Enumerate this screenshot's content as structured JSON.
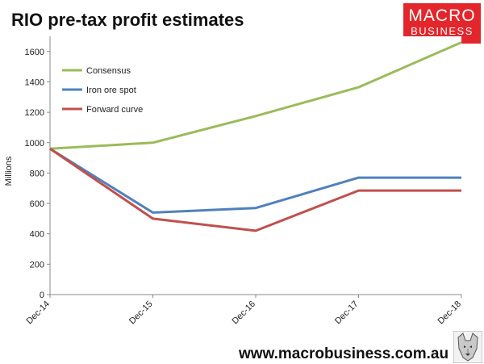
{
  "header": {
    "title": "RIO pre-tax profit estimates",
    "logo_line1": "MACRO",
    "logo_line2": "BUSINESS"
  },
  "footer": {
    "url": "www.macrobusiness.com.au",
    "mascot_icon": "wolf-head-icon"
  },
  "chart_data": {
    "type": "line",
    "title": "RIO pre-tax profit estimates",
    "xlabel": "",
    "ylabel": "Millions",
    "categories": [
      "Dec-14",
      "Dec-15",
      "Dec-16",
      "Dec-17",
      "Dec-18"
    ],
    "ylim": [
      0,
      1700
    ],
    "yticks": [
      0,
      200,
      400,
      600,
      800,
      1000,
      1200,
      1400,
      1600
    ],
    "grid": false,
    "legend": "top-left",
    "series": [
      {
        "name": "Consensus",
        "color": "#9bbb59",
        "values": [
          960,
          1000,
          1175,
          1365,
          1660
        ]
      },
      {
        "name": "Iron ore spot",
        "color": "#4f81bd",
        "values": [
          960,
          540,
          570,
          770,
          770
        ]
      },
      {
        "name": "Forward curve",
        "color": "#c0504d",
        "values": [
          960,
          500,
          420,
          685,
          685
        ]
      }
    ]
  }
}
